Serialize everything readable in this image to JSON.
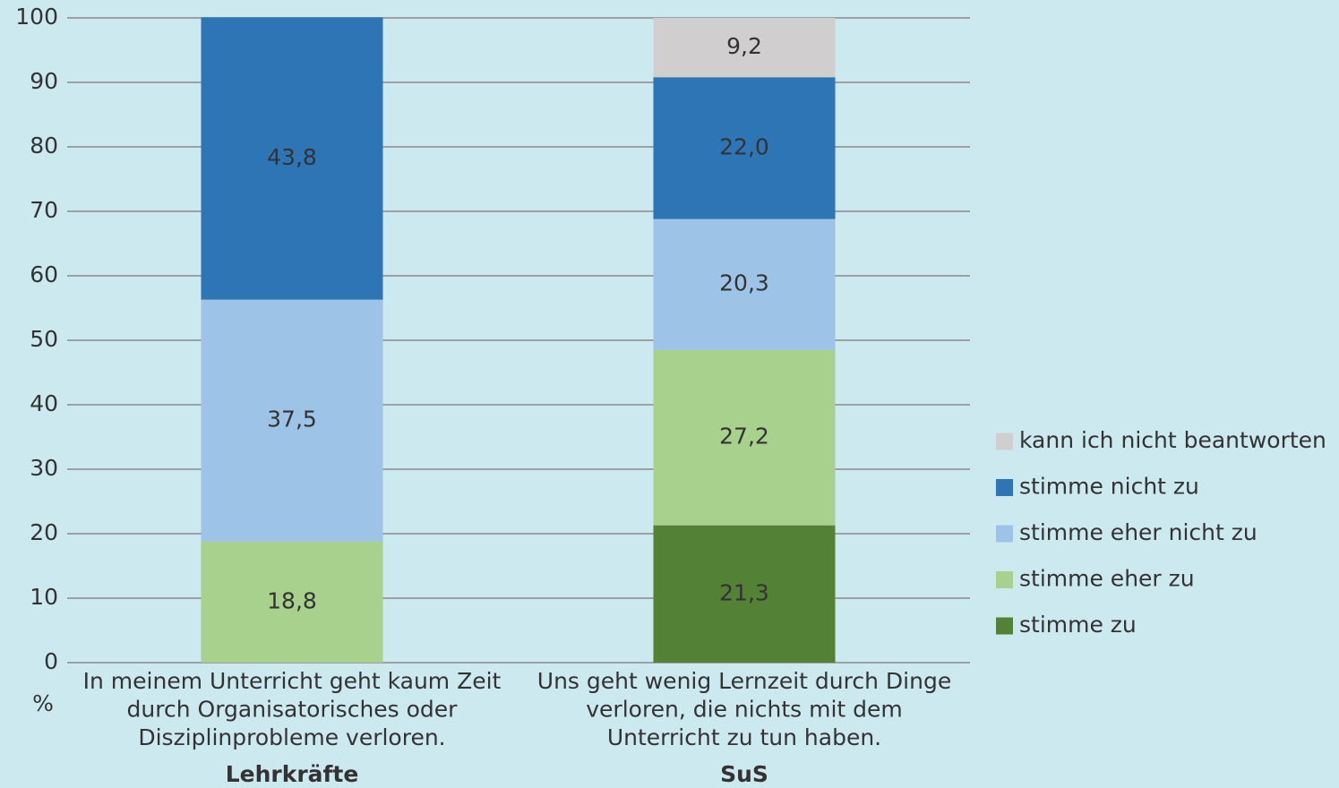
{
  "chart_data": {
    "type": "stacked_bar",
    "categories": [
      "In meinem Unterricht geht kaum Zeit durch Organisatorisches oder Disziplinprobleme verloren.",
      "Uns geht wenig Lernzeit durch Dinge verloren, die nichts mit dem Unterricht zu tun haben."
    ],
    "groups": [
      "Lehrkräfte",
      "SuS"
    ],
    "y_label": "%",
    "series": [
      {
        "name": "stimme zu",
        "color": "#538135",
        "values": [
          null,
          21.3
        ],
        "value_labels": [
          null,
          "21,3"
        ]
      },
      {
        "name": "stimme eher zu",
        "color": "#a9d18e",
        "values": [
          18.8,
          27.2
        ],
        "value_labels": [
          "18,8",
          "27,2"
        ]
      },
      {
        "name": "stimme eher nicht zu",
        "color": "#9dc3e6",
        "values": [
          37.5,
          20.3
        ],
        "value_labels": [
          "37,5",
          "20,3"
        ]
      },
      {
        "name": "stimme nicht zu",
        "color": "#2e75b6",
        "values": [
          43.8,
          22.0
        ],
        "value_labels": [
          "43,8",
          "22,0"
        ]
      },
      {
        "name": "kann ich nicht beantworten",
        "color": "#d0cece",
        "values": [
          null,
          9.2
        ],
        "value_labels": [
          null,
          "9,2"
        ]
      }
    ],
    "ylim": [
      0,
      100
    ],
    "yticks": [
      0,
      10,
      20,
      30,
      40,
      50,
      60,
      70,
      80,
      90,
      100
    ],
    "grid": true,
    "legend": "right"
  }
}
